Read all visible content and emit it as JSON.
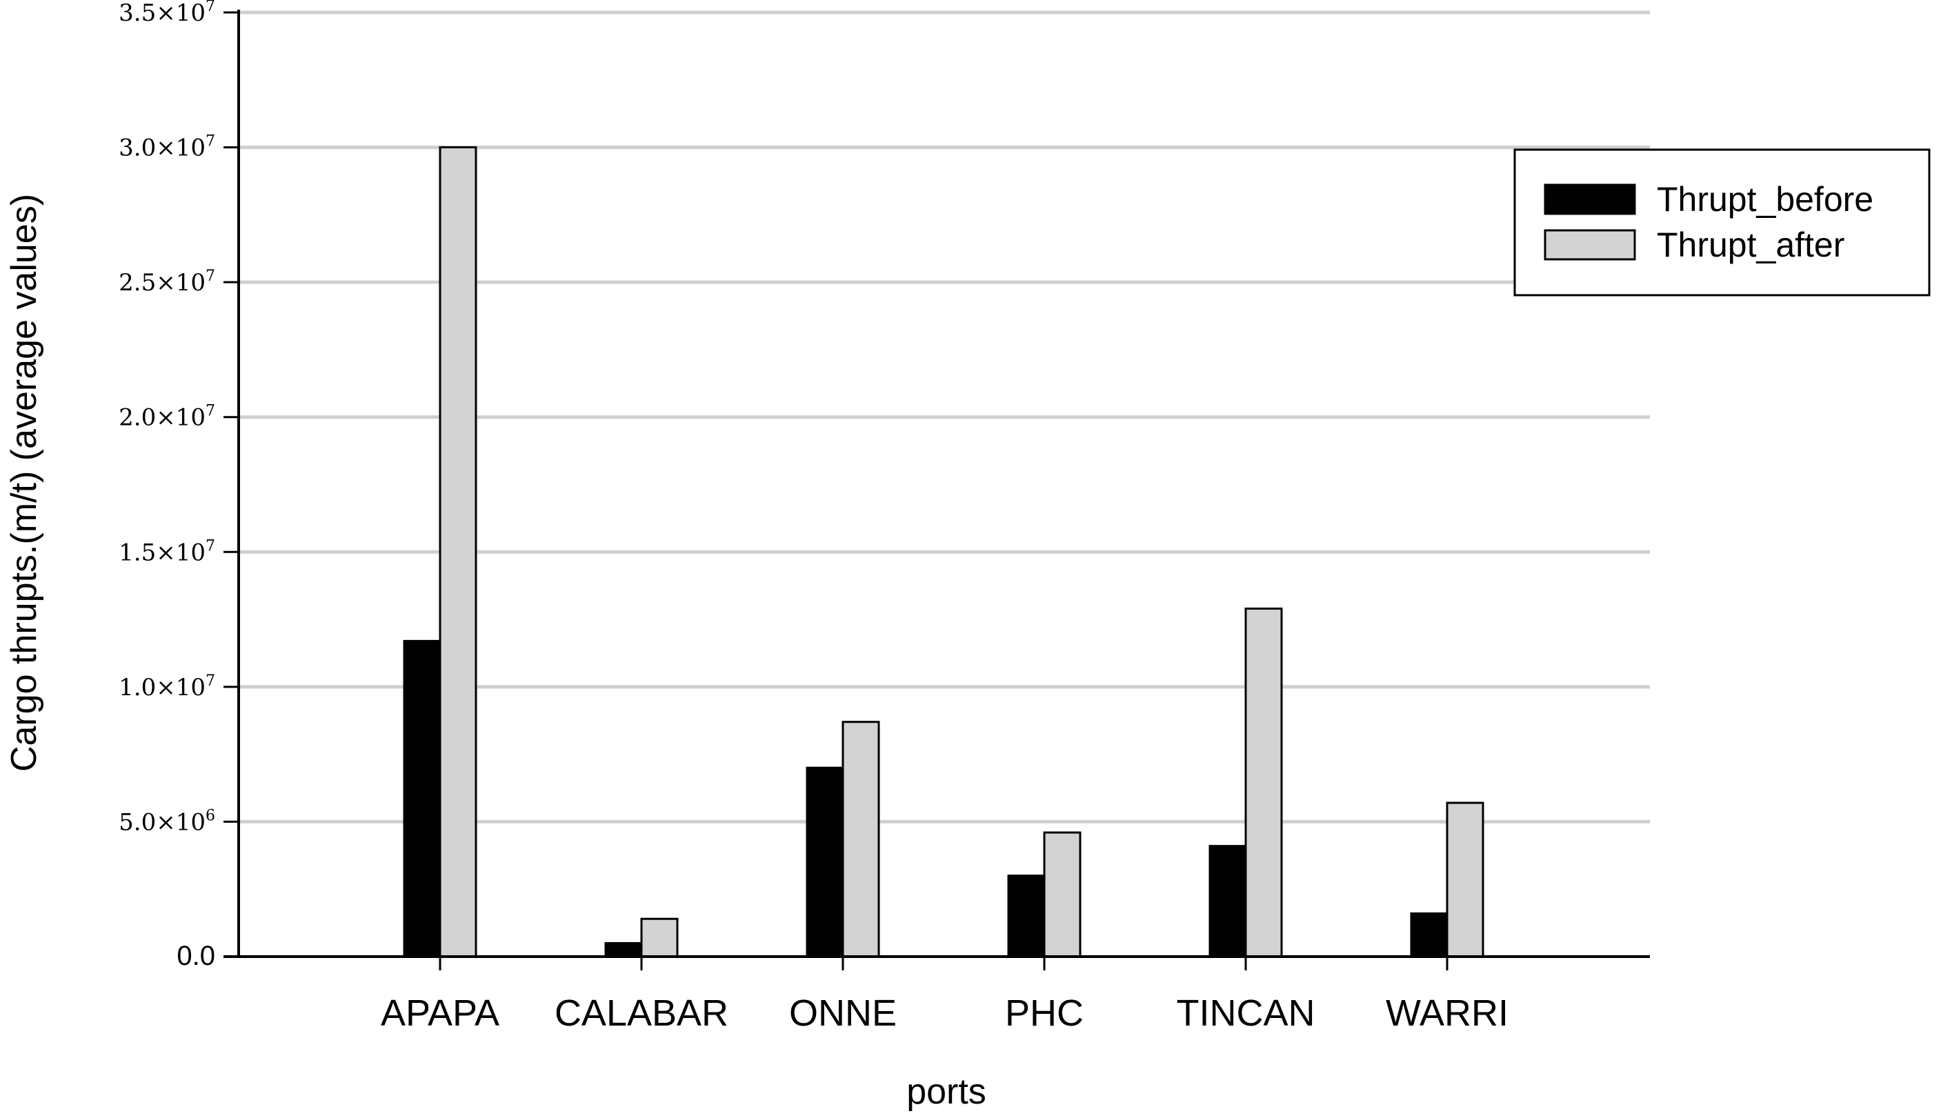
{
  "chart_data": {
    "type": "bar",
    "xlabel": "ports",
    "ylabel": "Cargo thrupts.(m/t) (average values)",
    "categories": [
      "APAPA",
      "CALABAR",
      "ONNE",
      "PHC",
      "TINCAN",
      "WARRI"
    ],
    "series": [
      {
        "name": "Thrupt_before",
        "color": "#000000",
        "values": [
          11700000,
          500000,
          7000000,
          3000000,
          4100000,
          1600000
        ]
      },
      {
        "name": "Thrupt_after",
        "color": "#d3d3d3",
        "values": [
          30000000,
          1400000,
          8700000,
          4600000,
          12900000,
          5700000
        ]
      }
    ],
    "ylim": [
      0,
      35000000
    ],
    "yticks": [
      {
        "value": 0,
        "mantissa": "0.0",
        "exponent": ""
      },
      {
        "value": 5000000,
        "mantissa": "5.0×10",
        "exponent": "6"
      },
      {
        "value": 10000000,
        "mantissa": "1.0×10",
        "exponent": "7"
      },
      {
        "value": 15000000,
        "mantissa": "1.5×10",
        "exponent": "7"
      },
      {
        "value": 20000000,
        "mantissa": "2.0×10",
        "exponent": "7"
      },
      {
        "value": 25000000,
        "mantissa": "2.5×10",
        "exponent": "7"
      },
      {
        "value": 30000000,
        "mantissa": "3.0×10",
        "exponent": "7"
      },
      {
        "value": 35000000,
        "mantissa": "3.5×10",
        "exponent": "7"
      }
    ],
    "grid": true,
    "legend_position": "top-right"
  }
}
